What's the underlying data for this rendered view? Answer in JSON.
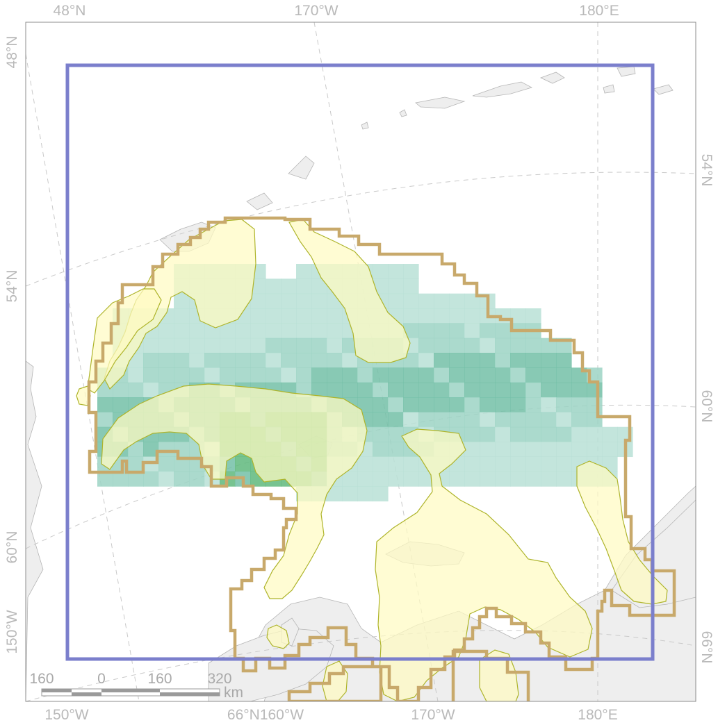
{
  "map": {
    "colors": {
      "land": "#eeeeee",
      "land_stroke": "#b5b5b5",
      "habitat_yellow": "#fffbc2",
      "habitat_yellow_stroke": "#aeb42a",
      "grid_teal_light": "#b9e0d6",
      "grid_teal_mid": "#9cd4c4",
      "grid_teal_dark": "#73bfa7",
      "grid_green": "#5fb87c",
      "study_boundary": "#c8a96b",
      "extent_box": "#7b7fcc"
    },
    "top_labels": [
      "48°N",
      "170°W",
      "180°E"
    ],
    "bottom_labels": [
      "150°W",
      "66°N160°W",
      "170°W",
      "180°E"
    ],
    "left_labels": [
      "48°N",
      "54°N",
      "60°N",
      "150°W"
    ],
    "right_labels": [
      "54°N",
      "60°N",
      "66°N"
    ]
  },
  "scale_bar": {
    "ticks": [
      "160",
      "0",
      "160",
      "320"
    ],
    "unit": "km"
  }
}
